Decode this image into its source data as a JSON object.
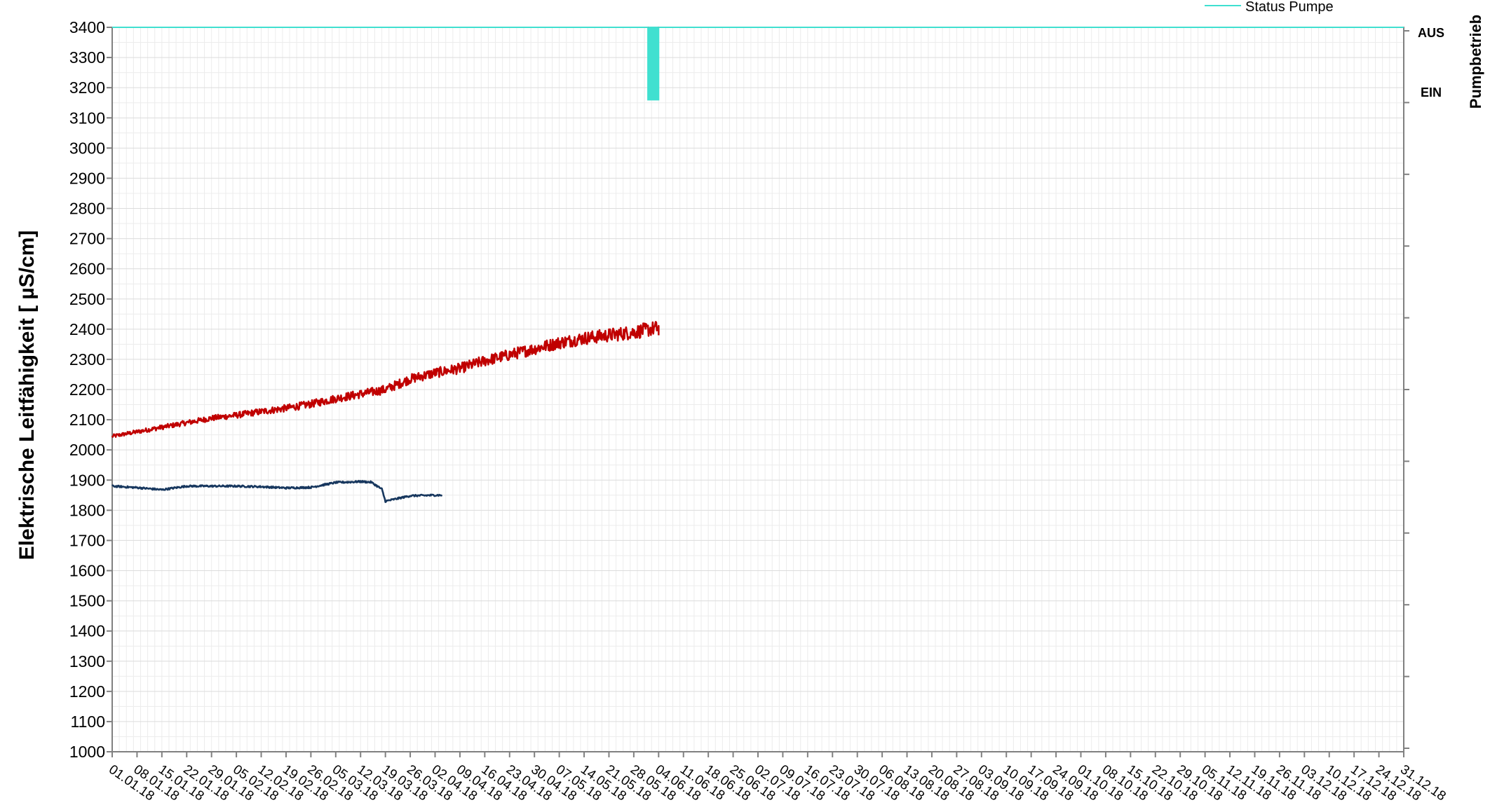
{
  "chart_data": {
    "type": "line",
    "title": "",
    "ylabel": "Elektrische Leitfähigkeit  [ µS/cm]",
    "y2label": "Pumpbetrieb",
    "ylim": [
      1000,
      3400
    ],
    "ytick_step": 100,
    "y_ticks": [
      "1000",
      "1100",
      "1200",
      "1300",
      "1400",
      "1500",
      "1600",
      "1700",
      "1800",
      "1900",
      "2000",
      "2100",
      "2200",
      "2300",
      "2400",
      "2500",
      "2600",
      "2700",
      "2800",
      "2900",
      "3000",
      "3100",
      "3200",
      "3300",
      "3400"
    ],
    "x_ticks": [
      "01.01.18",
      "08.01.18",
      "15.01.18",
      "22.01.18",
      "29.01.18",
      "05.02.18",
      "12.02.18",
      "19.02.18",
      "26.02.18",
      "05.03.18",
      "12.03.18",
      "19.03.18",
      "26.03.18",
      "02.04.18",
      "09.04.18",
      "16.04.18",
      "23.04.18",
      "30.04.18",
      "07.05.18",
      "14.05.18",
      "21.05.18",
      "28.05.18",
      "04.06.18",
      "11.06.18",
      "18.06.18",
      "25.06.18",
      "02.07.18",
      "09.07.18",
      "16.07.18",
      "23.07.18",
      "30.07.18",
      "06.08.18",
      "13.08.18",
      "20.08.18",
      "27.08.18",
      "03.09.18",
      "10.09.18",
      "17.09.18",
      "24.09.18",
      "01.10.18",
      "08.10.18",
      "15.10.18",
      "22.10.18",
      "29.10.18",
      "05.11.18",
      "12.11.18",
      "19.11.18",
      "26.11.18",
      "03.12.18",
      "10.12.18",
      "17.12.18",
      "24.12.18",
      "31.12.18"
    ],
    "x_range": [
      "01.01.18",
      "31.12.18"
    ],
    "grid": true,
    "legend": {
      "placement": "top-right",
      "entries": [
        "Status Pumpe"
      ]
    },
    "y2_labels": [
      "AUS",
      "EIN"
    ],
    "series": [
      {
        "name": "",
        "color": "#c00000",
        "noise": 10,
        "x": [
          "01.01.18",
          "08.01.18",
          "15.01.18",
          "22.01.18",
          "29.01.18",
          "05.02.18",
          "12.02.18",
          "19.02.18",
          "26.02.18",
          "05.03.18",
          "12.03.18",
          "19.03.18",
          "26.03.18",
          "02.04.18",
          "09.04.18",
          "16.04.18",
          "23.04.18",
          "30.04.18",
          "07.05.18",
          "14.05.18",
          "21.05.18",
          "28.05.18",
          "04.06.18",
          "04.06.18"
        ],
        "values": [
          2045,
          2060,
          2075,
          2090,
          2105,
          2115,
          2127,
          2138,
          2152,
          2170,
          2185,
          2200,
          2235,
          2255,
          2270,
          2295,
          2315,
          2335,
          2355,
          2370,
          2380,
          2390,
          2405,
          2380
        ]
      },
      {
        "name": "",
        "color": "#17375e",
        "noise": 3,
        "x": [
          "01.01.18",
          "08.01.18",
          "15.01.18",
          "22.01.18",
          "29.01.18",
          "05.02.18",
          "12.02.18",
          "19.02.18",
          "26.02.18",
          "05.03.18",
          "12.03.18",
          "15.03.18",
          "18.03.18",
          "19.03.18",
          "26.03.18",
          "02.04.18",
          "04.04.18"
        ],
        "values": [
          1880,
          1875,
          1868,
          1880,
          1880,
          1880,
          1878,
          1874,
          1876,
          1892,
          1895,
          1893,
          1870,
          1830,
          1848,
          1850,
          1850
        ]
      }
    ],
    "pump_status": {
      "name": "Status Pumpe",
      "color": "#40e0d0",
      "states": [
        "AUS",
        "EIN"
      ],
      "off_dates": [
        "01.01.18",
        "31.12.18"
      ],
      "on_intervals": [
        [
          "01.06.18",
          "04.06.18"
        ]
      ]
    }
  }
}
